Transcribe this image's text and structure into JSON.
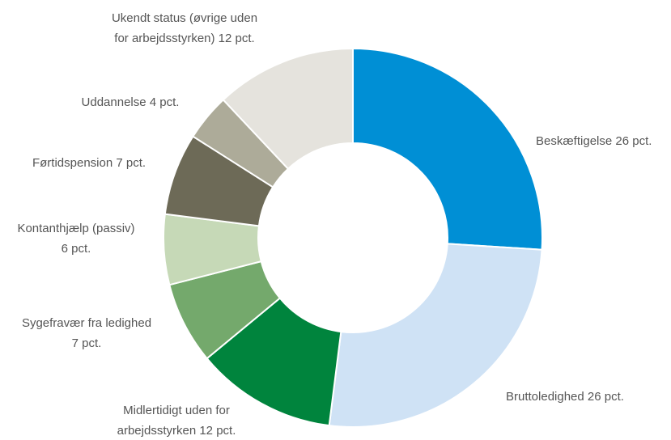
{
  "chart_data": {
    "type": "donut",
    "labels": [
      [
        "Beskæftigelse 26 pct."
      ],
      [
        "Bruttoledighed 26 pct."
      ],
      [
        "Midlertidigt uden for",
        "arbejdsstyrken 12 pct."
      ],
      [
        "Sygefravær fra ledighed",
        "7 pct."
      ],
      [
        "Kontanthjælp (passiv)",
        "6 pct."
      ],
      [
        "Førtidspension 7 pct."
      ],
      [
        "Uddannelse 4 pct."
      ],
      [
        "Ukendt status (øvrige uden",
        "for arbejdsstyrken) 12 pct."
      ]
    ],
    "values": [
      26,
      26,
      12,
      7,
      6,
      7,
      4,
      12
    ],
    "colors": [
      "#008fd5",
      "#cfe2f5",
      "#00843d",
      "#74a96c",
      "#c6d9b7",
      "#6d6a57",
      "#adab99",
      "#e5e3dd"
    ]
  }
}
